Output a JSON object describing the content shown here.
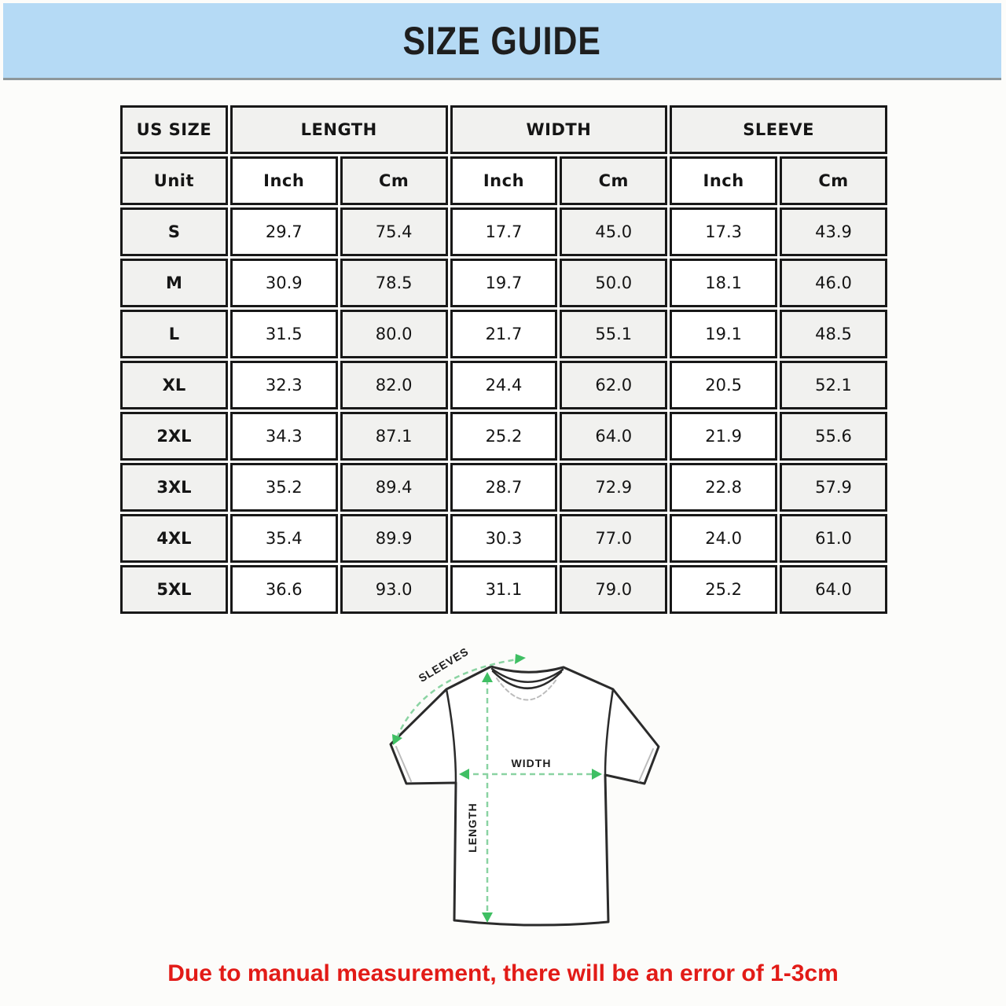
{
  "banner": {
    "title": "SIZE GUIDE"
  },
  "table": {
    "header": [
      "US SIZE",
      "LENGTH",
      "WIDTH",
      "SLEEVE"
    ],
    "unit_row": [
      "Unit",
      "Inch",
      "Cm",
      "Inch",
      "Cm",
      "Inch",
      "Cm"
    ],
    "rows": [
      [
        "S",
        "29.7",
        "75.4",
        "17.7",
        "45.0",
        "17.3",
        "43.9"
      ],
      [
        "M",
        "30.9",
        "78.5",
        "19.7",
        "50.0",
        "18.1",
        "46.0"
      ],
      [
        "L",
        "31.5",
        "80.0",
        "21.7",
        "55.1",
        "19.1",
        "48.5"
      ],
      [
        "XL",
        "32.3",
        "82.0",
        "24.4",
        "62.0",
        "20.5",
        "52.1"
      ],
      [
        "2XL",
        "34.3",
        "87.1",
        "25.2",
        "64.0",
        "21.9",
        "55.6"
      ],
      [
        "3XL",
        "35.2",
        "89.4",
        "28.7",
        "72.9",
        "22.8",
        "57.9"
      ],
      [
        "4XL",
        "35.4",
        "89.9",
        "30.3",
        "77.0",
        "24.0",
        "61.0"
      ],
      [
        "5XL",
        "36.6",
        "93.0",
        "31.1",
        "79.0",
        "25.2",
        "64.0"
      ]
    ]
  },
  "diagram": {
    "labels": {
      "sleeves": "SLEEVES",
      "width": "WIDTH",
      "length": "LENGTH"
    }
  },
  "note": {
    "text": "Due to manual measurement, there will be an error of 1-3cm"
  },
  "colors": {
    "banner_bg": "#b5daf5",
    "banner_border": "#8d979b",
    "cell_gray": "#f1f1ef",
    "table_border": "#181818",
    "note_red": "#e21b17",
    "arrow_green": "#8ad3a2",
    "arrowhead_green": "#3fbf63",
    "outline_dark": "#2b2b2b"
  }
}
